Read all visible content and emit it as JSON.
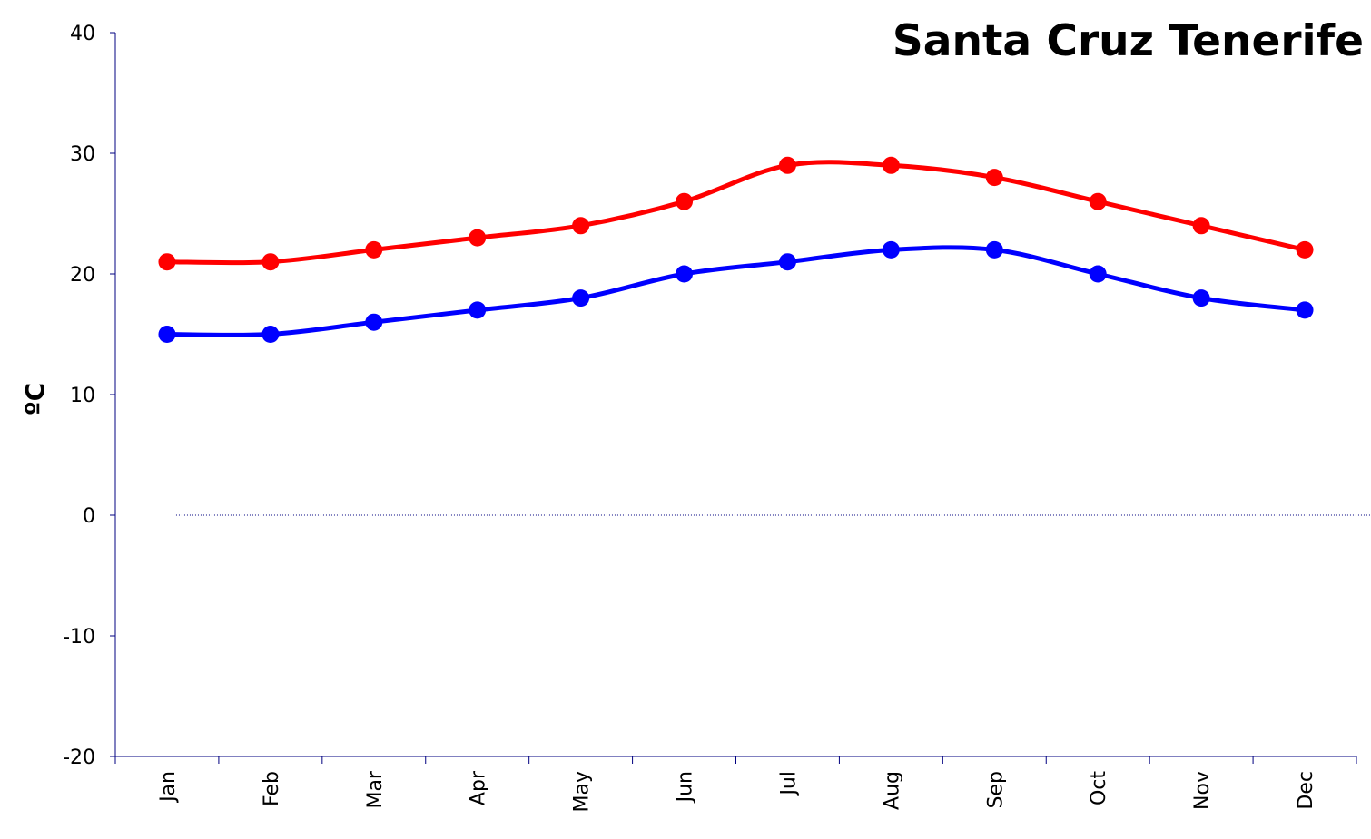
{
  "chart_data": {
    "type": "line",
    "title": "Santa Cruz Tenerife",
    "xlabel": "",
    "ylabel": "ºC",
    "categories": [
      "Jan",
      "Feb",
      "Mar",
      "Apr",
      "May",
      "Jun",
      "Jul",
      "Aug",
      "Sep",
      "Oct",
      "Nov",
      "Dec"
    ],
    "series": [
      {
        "color": "#ff0000",
        "values": [
          21,
          21,
          22,
          23,
          24,
          26,
          29,
          29,
          28,
          26,
          24,
          22
        ]
      },
      {
        "color": "#0000ff",
        "values": [
          15,
          15,
          16,
          17,
          18,
          20,
          21,
          22,
          22,
          20,
          18,
          17
        ]
      }
    ],
    "ylim": [
      -20,
      40
    ],
    "yticks": [
      40,
      30,
      20,
      10,
      0,
      -10,
      -20
    ],
    "grid": false,
    "legend": "none",
    "zero_line": true,
    "smooth": true
  }
}
